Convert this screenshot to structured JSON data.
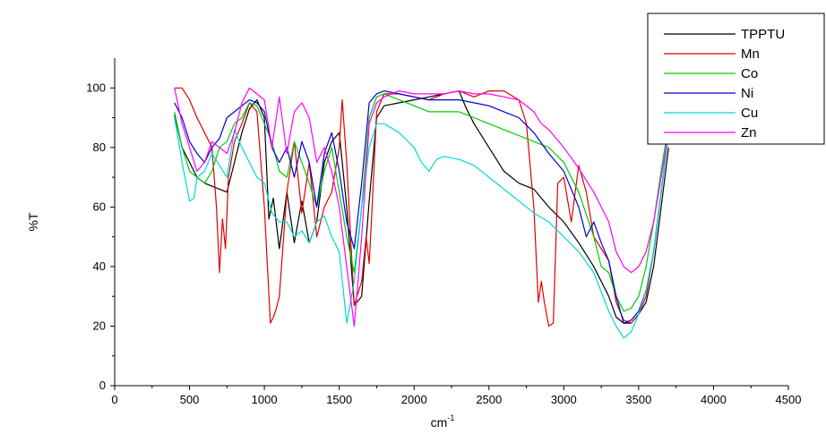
{
  "chart_data": {
    "type": "line",
    "xlabel": "cm",
    "xlabel_superscript": "-1",
    "ylabel": "%T",
    "xlim": [
      0,
      4500
    ],
    "ylim": [
      0,
      110
    ],
    "xticks": [
      0,
      500,
      1000,
      1500,
      2000,
      2500,
      3000,
      3500,
      4000,
      4500
    ],
    "yticks": [
      0,
      20,
      40,
      60,
      80,
      100
    ],
    "legend_position": "top-right",
    "grid": false,
    "series": [
      {
        "name": "TPPTU",
        "color": "#000000",
        "x": [
          400,
          450,
          500,
          550,
          600,
          650,
          700,
          750,
          800,
          850,
          900,
          950,
          1000,
          1030,
          1060,
          1100,
          1150,
          1200,
          1250,
          1300,
          1350,
          1400,
          1450,
          1500,
          1550,
          1600,
          1650,
          1700,
          1750,
          1800,
          1900,
          2000,
          2100,
          2200,
          2300,
          2350,
          2400,
          2500,
          2600,
          2700,
          2800,
          2900,
          3000,
          3100,
          3200,
          3300,
          3350,
          3400,
          3450,
          3500,
          3550,
          3600,
          3650,
          3700
        ],
        "y": [
          91,
          80,
          75,
          70,
          68,
          67,
          66,
          65,
          75,
          85,
          93,
          96,
          90,
          56,
          63,
          46,
          65,
          48,
          62,
          48,
          55,
          75,
          82,
          85,
          60,
          27,
          30,
          62,
          90,
          94,
          95,
          96,
          97,
          98,
          99,
          93,
          88,
          80,
          72,
          68,
          66,
          60,
          55,
          48,
          40,
          30,
          23,
          21,
          21,
          24,
          28,
          40,
          60,
          80
        ]
      },
      {
        "name": "Mn",
        "color": "#e00000",
        "x": [
          400,
          450,
          500,
          550,
          600,
          650,
          680,
          700,
          720,
          740,
          760,
          800,
          850,
          900,
          950,
          1000,
          1020,
          1040,
          1060,
          1080,
          1100,
          1150,
          1200,
          1250,
          1300,
          1350,
          1400,
          1450,
          1500,
          1520,
          1550,
          1600,
          1650,
          1680,
          1700,
          1720,
          1750,
          1800,
          1900,
          2000,
          2100,
          2200,
          2300,
          2400,
          2500,
          2600,
          2700,
          2750,
          2800,
          2830,
          2850,
          2870,
          2900,
          2930,
          2960,
          3000,
          3050,
          3100,
          3150,
          3200,
          3300,
          3350,
          3400,
          3450,
          3500,
          3550,
          3600,
          3650,
          3700
        ],
        "y": [
          100,
          100,
          96,
          90,
          85,
          80,
          60,
          38,
          56,
          46,
          70,
          82,
          88,
          95,
          92,
          60,
          40,
          21,
          23,
          26,
          30,
          65,
          82,
          58,
          75,
          50,
          60,
          65,
          80,
          96,
          75,
          27,
          35,
          50,
          41,
          60,
          92,
          98,
          98,
          97,
          96,
          98,
          99,
          97,
          99,
          99,
          96,
          88,
          60,
          28,
          35,
          28,
          20,
          21,
          68,
          70,
          55,
          74,
          65,
          50,
          42,
          28,
          22,
          21,
          24,
          30,
          45,
          65,
          85
        ]
      },
      {
        "name": "Co",
        "color": "#00cc00",
        "x": [
          400,
          450,
          500,
          550,
          600,
          650,
          700,
          750,
          800,
          850,
          900,
          950,
          1000,
          1050,
          1100,
          1150,
          1200,
          1250,
          1300,
          1350,
          1400,
          1450,
          1500,
          1550,
          1600,
          1650,
          1700,
          1750,
          1800,
          1900,
          2000,
          2100,
          2200,
          2300,
          2400,
          2500,
          2600,
          2700,
          2800,
          2900,
          3000,
          3100,
          3200,
          3250,
          3300,
          3350,
          3400,
          3450,
          3500,
          3550,
          3600,
          3650,
          3700
        ],
        "y": [
          92,
          80,
          72,
          70,
          68,
          72,
          80,
          82,
          88,
          90,
          95,
          94,
          88,
          82,
          72,
          70,
          82,
          75,
          68,
          60,
          72,
          80,
          65,
          50,
          38,
          60,
          90,
          97,
          98,
          96,
          94,
          92,
          92,
          92,
          90,
          88,
          86,
          84,
          82,
          80,
          75,
          65,
          50,
          40,
          38,
          30,
          25,
          26,
          30,
          40,
          55,
          72,
          88
        ]
      },
      {
        "name": "Ni",
        "color": "#0000cc",
        "x": [
          400,
          450,
          500,
          550,
          600,
          650,
          700,
          750,
          800,
          850,
          900,
          950,
          1000,
          1050,
          1100,
          1150,
          1200,
          1250,
          1300,
          1350,
          1400,
          1450,
          1500,
          1550,
          1600,
          1650,
          1700,
          1750,
          1800,
          1900,
          2000,
          2100,
          2200,
          2300,
          2400,
          2500,
          2600,
          2700,
          2800,
          2900,
          3000,
          3100,
          3150,
          3200,
          3250,
          3300,
          3350,
          3400,
          3450,
          3500,
          3550,
          3600,
          3650,
          3700
        ],
        "y": [
          95,
          90,
          82,
          78,
          75,
          80,
          83,
          90,
          92,
          94,
          96,
          95,
          92,
          80,
          75,
          80,
          70,
          82,
          75,
          60,
          78,
          85,
          72,
          55,
          46,
          68,
          95,
          98,
          99,
          98,
          97,
          96,
          96,
          96,
          95,
          94,
          92,
          90,
          85,
          78,
          72,
          60,
          50,
          55,
          48,
          42,
          30,
          21,
          22,
          25,
          32,
          45,
          65,
          85
        ]
      },
      {
        "name": "Cu",
        "color": "#00d8d8",
        "x": [
          400,
          450,
          500,
          530,
          550,
          600,
          650,
          700,
          750,
          800,
          850,
          900,
          950,
          1000,
          1050,
          1100,
          1150,
          1200,
          1250,
          1300,
          1350,
          1400,
          1450,
          1500,
          1550,
          1600,
          1650,
          1700,
          1750,
          1800,
          1900,
          2000,
          2050,
          2100,
          2150,
          2200,
          2300,
          2400,
          2500,
          2600,
          2700,
          2800,
          2900,
          3000,
          3100,
          3200,
          3300,
          3350,
          3400,
          3450,
          3500,
          3550,
          3600,
          3650,
          3700
        ],
        "y": [
          90,
          75,
          62,
          63,
          70,
          72,
          78,
          74,
          70,
          86,
          80,
          75,
          70,
          68,
          58,
          55,
          55,
          50,
          52,
          48,
          55,
          57,
          50,
          45,
          21,
          35,
          60,
          80,
          88,
          88,
          85,
          80,
          75,
          72,
          76,
          77,
          76,
          74,
          70,
          66,
          62,
          58,
          55,
          50,
          45,
          38,
          25,
          20,
          16,
          18,
          24,
          32,
          45,
          65,
          85
        ]
      },
      {
        "name": "Zn",
        "color": "#ff00ff",
        "x": [
          400,
          450,
          500,
          550,
          600,
          650,
          700,
          750,
          800,
          850,
          900,
          950,
          1000,
          1050,
          1100,
          1150,
          1200,
          1250,
          1300,
          1350,
          1400,
          1450,
          1500,
          1550,
          1600,
          1650,
          1700,
          1750,
          1800,
          1900,
          2000,
          2100,
          2200,
          2300,
          2400,
          2500,
          2600,
          2700,
          2800,
          2850,
          2900,
          3000,
          3100,
          3200,
          3300,
          3350,
          3400,
          3450,
          3500,
          3550,
          3600,
          3650,
          3700
        ],
        "y": [
          100,
          88,
          80,
          72,
          75,
          82,
          80,
          78,
          85,
          95,
          100,
          98,
          96,
          80,
          97,
          78,
          92,
          95,
          90,
          75,
          80,
          72,
          60,
          40,
          20,
          50,
          88,
          95,
          97,
          99,
          98,
          98,
          98,
          99,
          98,
          98,
          97,
          96,
          92,
          88,
          86,
          80,
          73,
          65,
          55,
          45,
          40,
          38,
          40,
          45,
          55,
          70,
          85
        ]
      }
    ]
  }
}
